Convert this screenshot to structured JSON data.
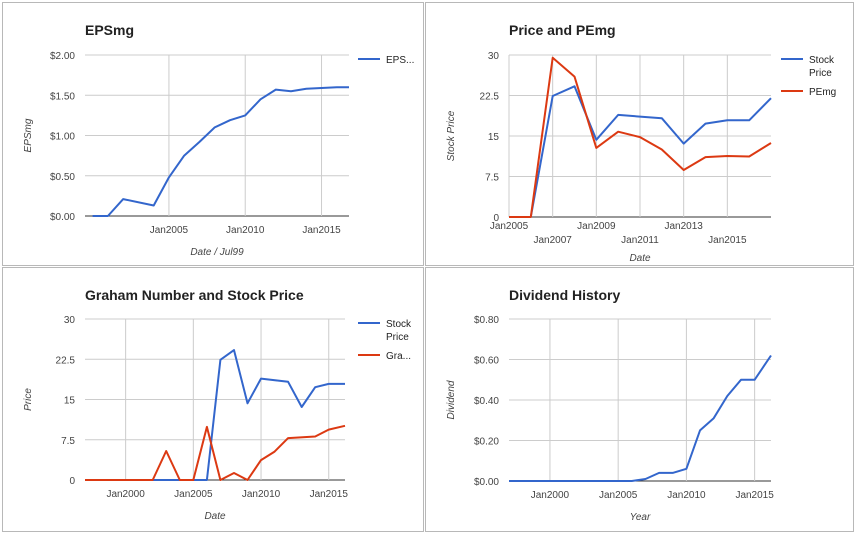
{
  "chart_data": [
    {
      "id": "eps",
      "type": "line",
      "title": "EPSmg",
      "xlabel": "Date / Jul99",
      "ylabel": "EPSmg",
      "ylim": [
        0,
        2
      ],
      "xlim": [
        1999.5,
        2016.8
      ],
      "yticks": [
        0,
        0.5,
        1.0,
        1.5,
        2.0
      ],
      "ytick_labels": [
        "$0.00",
        "$0.50",
        "$1.00",
        "$1.50",
        "$2.00"
      ],
      "xticks": [
        2005,
        2010,
        2015
      ],
      "xtick_labels": [
        "Jan2005",
        "Jan2010",
        "Jan2015"
      ],
      "legend_position": "right",
      "grid": true,
      "series": [
        {
          "name": "EPS...",
          "color": "#3366cc",
          "x": [
            2000,
            2001,
            2002,
            2004,
            2005,
            2006,
            2007,
            2008,
            2009,
            2010,
            2011,
            2012,
            2013,
            2014,
            2015,
            2016,
            2016.8
          ],
          "y": [
            0,
            0,
            0.21,
            0.13,
            0.48,
            0.75,
            0.92,
            1.1,
            1.19,
            1.25,
            1.45,
            1.57,
            1.55,
            1.58,
            1.59,
            1.6,
            1.6
          ]
        }
      ]
    },
    {
      "id": "pe",
      "type": "line",
      "title": "Price and PEmg",
      "xlabel": "Date",
      "ylabel": "Stock Price",
      "ylim": [
        0,
        30
      ],
      "xlim": [
        2005,
        2017
      ],
      "yticks": [
        0,
        7.5,
        15,
        22.5,
        30
      ],
      "ytick_labels": [
        "0",
        "7.5",
        "15",
        "22.5",
        "30"
      ],
      "xticks": [
        2005,
        2007,
        2009,
        2011,
        2013,
        2015
      ],
      "xtick_labels": [
        "Jan2005",
        "Jan2007",
        "Jan2009",
        "Jan2011",
        "Jan2013",
        "Jan2015"
      ],
      "legend_position": "right",
      "grid": true,
      "series": [
        {
          "name": "Stock Price",
          "color": "#3366cc",
          "x": [
            2005,
            2006,
            2007,
            2008,
            2009,
            2010,
            2011,
            2012,
            2013,
            2014,
            2015,
            2016,
            2017
          ],
          "y": [
            0,
            0,
            22.4,
            24.2,
            14.3,
            18.9,
            18.6,
            18.3,
            13.6,
            17.3,
            17.9,
            17.9,
            22.0
          ]
        },
        {
          "name": "PEmg",
          "color": "#dc3912",
          "x": [
            2005,
            2006,
            2007,
            2008,
            2009,
            2010,
            2011,
            2012,
            2013,
            2014,
            2015,
            2016,
            2017
          ],
          "y": [
            0,
            0,
            29.5,
            26.0,
            12.8,
            15.8,
            14.8,
            12.5,
            8.7,
            11.1,
            11.3,
            11.2,
            13.7
          ]
        }
      ]
    },
    {
      "id": "graham",
      "type": "line",
      "title": "Graham Number and Stock Price",
      "xlabel": "Date",
      "ylabel": "Price",
      "ylim": [
        0,
        30
      ],
      "xlim": [
        1997,
        2016.2
      ],
      "yticks": [
        0,
        7.5,
        15,
        22.5,
        30
      ],
      "ytick_labels": [
        "0",
        "7.5",
        "15",
        "22.5",
        "30"
      ],
      "xticks": [
        2000,
        2005,
        2010,
        2015
      ],
      "xtick_labels": [
        "Jan2000",
        "Jan2005",
        "Jan2010",
        "Jan2015"
      ],
      "legend_position": "right",
      "grid": true,
      "series": [
        {
          "name": "Stock Price",
          "color": "#3366cc",
          "x": [
            1997,
            2006,
            2007,
            2008,
            2009,
            2010,
            2012,
            2013,
            2014,
            2015,
            2016.2
          ],
          "y": [
            0,
            0,
            22.4,
            24.2,
            14.3,
            18.9,
            18.3,
            13.6,
            17.3,
            17.9,
            17.9
          ]
        },
        {
          "name": "Gra...",
          "color": "#dc3912",
          "x": [
            1997,
            2002,
            2003,
            2004,
            2005,
            2006,
            2007,
            2008,
            2009,
            2010,
            2011,
            2012,
            2014,
            2015,
            2016.2
          ],
          "y": [
            0,
            0,
            5.4,
            0,
            0,
            9.9,
            0,
            1.3,
            0,
            3.7,
            5.3,
            7.8,
            8.1,
            9.4,
            10.1
          ]
        }
      ]
    },
    {
      "id": "div",
      "type": "line",
      "title": "Dividend History",
      "xlabel": "Year",
      "ylabel": "Dividend",
      "ylim": [
        0,
        0.8
      ],
      "xlim": [
        1997,
        2016.2
      ],
      "yticks": [
        0,
        0.2,
        0.4,
        0.6,
        0.8
      ],
      "ytick_labels": [
        "$0.00",
        "$0.20",
        "$0.40",
        "$0.60",
        "$0.80"
      ],
      "xticks": [
        2000,
        2005,
        2010,
        2015
      ],
      "xtick_labels": [
        "Jan2000",
        "Jan2005",
        "Jan2010",
        "Jan2015"
      ],
      "legend_position": "none",
      "grid": true,
      "series": [
        {
          "name": "",
          "color": "#3366cc",
          "x": [
            1997,
            2006,
            2007,
            2008,
            2009,
            2010,
            2011,
            2012,
            2013,
            2014,
            2015,
            2016.2
          ],
          "y": [
            0,
            0,
            0.01,
            0.04,
            0.04,
            0.06,
            0.25,
            0.31,
            0.42,
            0.5,
            0.5,
            0.62
          ]
        }
      ]
    }
  ]
}
